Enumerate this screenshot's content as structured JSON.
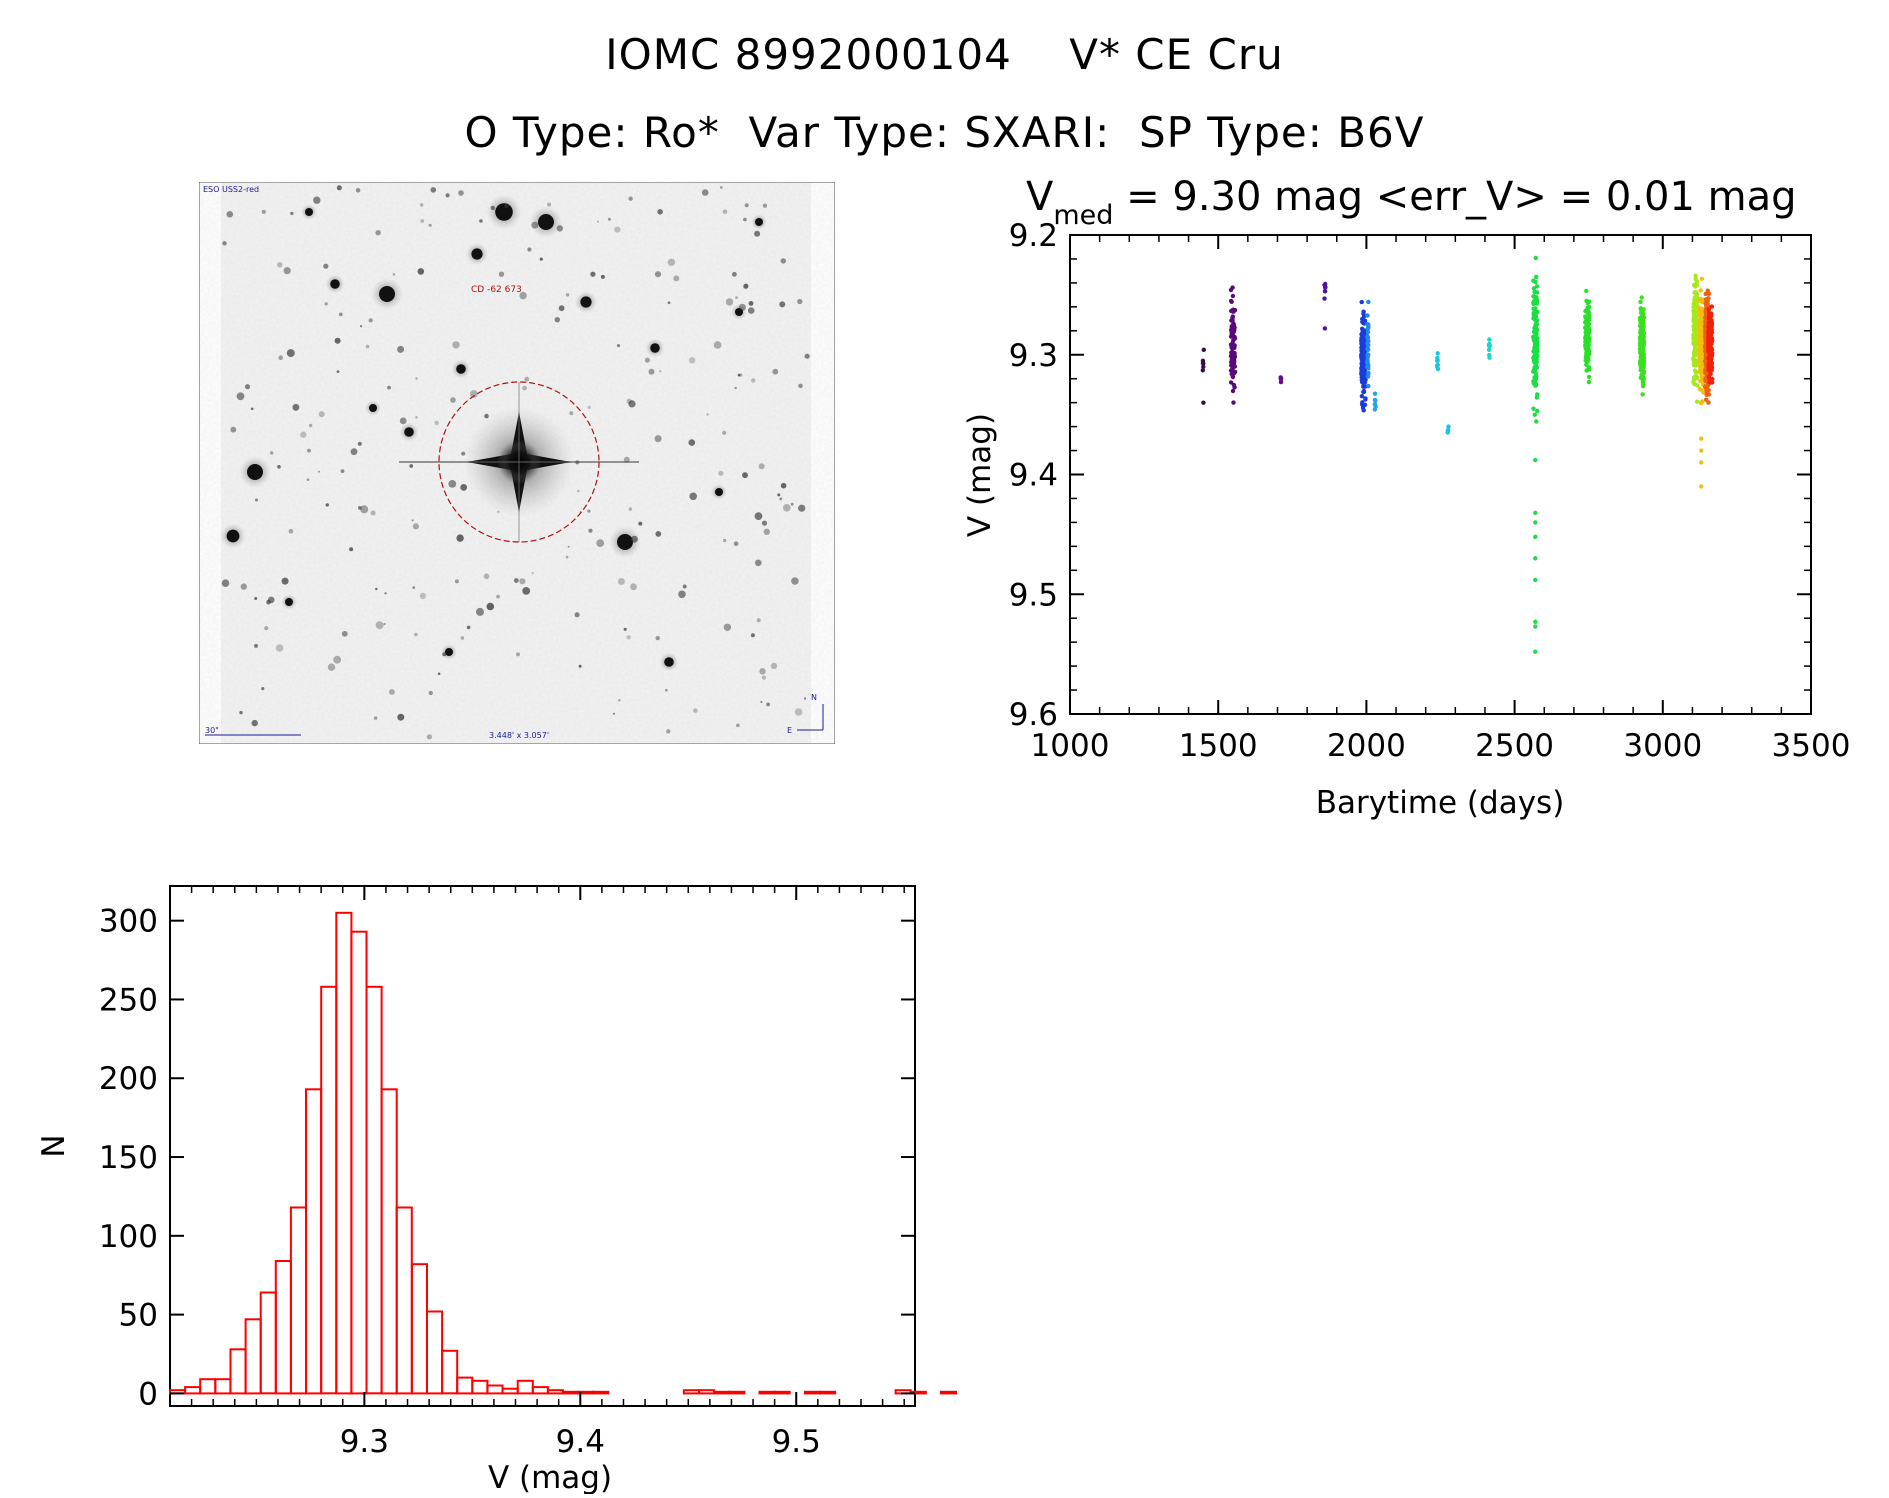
{
  "header": {
    "title": "IOMC 8992000104    V* CE Cru",
    "subtitle": "O Type: Ro*  Var Type: SXARI:  SP Type: B6V"
  },
  "finder_image": {
    "survey_label": "ESO USS2-red",
    "object_label": "CD -62 673",
    "scale_label": "30\"",
    "fov_label": "3.448' x 3.057'",
    "compass": {
      "north": "N",
      "east": "E"
    }
  },
  "chart_data": [
    {
      "type": "scatter",
      "title_parts": {
        "symbol": "V",
        "subscript": "med",
        "rest": " = 9.30 mag <err_V> = 0.01 mag"
      },
      "xlabel": "Barytime (days)",
      "ylabel": "V (mag)",
      "xlim": [
        1000,
        3500
      ],
      "ylim": [
        9.6,
        9.2
      ],
      "y_inverted": true,
      "xticks": [
        1000,
        1500,
        2000,
        2500,
        3000,
        3500
      ],
      "yticks": [
        9.2,
        9.3,
        9.4,
        9.5,
        9.6
      ],
      "ytick_labels": [
        "9.2",
        "9.3",
        "9.4",
        "9.5",
        "9.6"
      ],
      "color_scale": "rainbow by time",
      "groups": [
        {
          "x": 1450,
          "ymin": 9.29,
          "ymax": 9.32,
          "n": 6,
          "color": "#3a0a4a",
          "extra": [
            9.34
          ]
        },
        {
          "x": 1550,
          "ymin": 9.23,
          "ymax": 9.35,
          "n": 90,
          "color": "#5a0a78"
        },
        {
          "x": 1710,
          "ymin": 9.315,
          "ymax": 9.325,
          "n": 5,
          "color": "#6a0a88"
        },
        {
          "x": 1860,
          "ymin": 9.235,
          "ymax": 9.26,
          "n": 8,
          "color": "#4d16a0",
          "extra": [
            9.278
          ]
        },
        {
          "x": 1990,
          "ymin": 9.245,
          "ymax": 9.355,
          "n": 200,
          "color": "#1a3cd8"
        },
        {
          "x": 2005,
          "ymin": 9.25,
          "ymax": 9.34,
          "n": 40,
          "color": "#1e88f0"
        },
        {
          "x": 2030,
          "ymin": 9.33,
          "ymax": 9.35,
          "n": 6,
          "color": "#1aa4f0"
        },
        {
          "x": 2240,
          "ymin": 9.29,
          "ymax": 9.32,
          "n": 8,
          "color": "#16c8e0"
        },
        {
          "x": 2275,
          "ymin": 9.355,
          "ymax": 9.37,
          "n": 5,
          "color": "#16c8e0"
        },
        {
          "x": 2415,
          "ymin": 9.275,
          "ymax": 9.31,
          "n": 8,
          "color": "#16d8c8"
        },
        {
          "x": 2570,
          "ymin": 9.21,
          "ymax": 9.37,
          "n": 120,
          "color": "#18e040",
          "extra": [
            9.388,
            9.432,
            9.44,
            9.452,
            9.47,
            9.488,
            9.523,
            9.527,
            9.548
          ]
        },
        {
          "x": 2745,
          "ymin": 9.24,
          "ymax": 9.33,
          "n": 130,
          "color": "#28e028"
        },
        {
          "x": 2930,
          "ymin": 9.245,
          "ymax": 9.345,
          "n": 130,
          "color": "#3ae020"
        },
        {
          "x": 3110,
          "ymin": 9.22,
          "ymax": 9.345,
          "n": 150,
          "color": "#a8e818"
        },
        {
          "x": 3130,
          "ymin": 9.23,
          "ymax": 9.35,
          "n": 150,
          "color": "#f0c010",
          "extra": [
            9.37,
            9.38,
            9.39,
            9.41
          ]
        },
        {
          "x": 3150,
          "ymin": 9.24,
          "ymax": 9.35,
          "n": 250,
          "color": "#f06010"
        },
        {
          "x": 3160,
          "ymin": 9.24,
          "ymax": 9.345,
          "n": 150,
          "color": "#f02010"
        }
      ]
    },
    {
      "type": "bar",
      "subtype": "histogram",
      "xlabel": "V (mag)",
      "ylabel": "N",
      "xlim": [
        9.21,
        9.555
      ],
      "ylim": [
        -8,
        322
      ],
      "xticks": [
        9.3,
        9.4,
        9.5
      ],
      "xtick_labels": [
        "9.3",
        "9.4",
        "9.5"
      ],
      "yticks": [
        0,
        50,
        100,
        150,
        200,
        250,
        300
      ],
      "bin_width": 0.007,
      "bin_start": 9.21,
      "values": [
        2,
        4,
        9,
        9,
        28,
        47,
        64,
        84,
        118,
        193,
        258,
        305,
        293,
        258,
        193,
        118,
        82,
        52,
        27,
        10,
        8,
        5,
        3,
        8,
        4,
        2,
        1,
        1,
        1,
        0,
        0,
        0,
        0,
        0,
        2,
        2,
        1,
        1,
        0,
        1,
        1,
        0,
        1,
        1,
        0,
        0,
        0,
        0,
        2,
        1,
        0,
        1
      ],
      "color": "#ff0000"
    }
  ]
}
